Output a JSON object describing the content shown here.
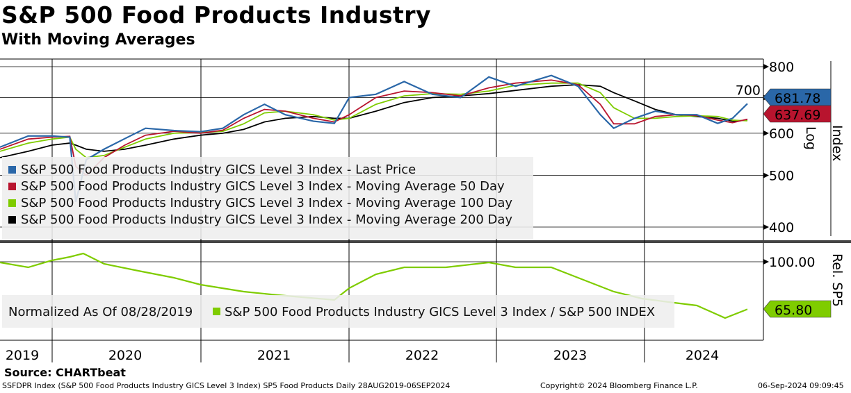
{
  "header": {
    "title": "S&P 500 Food Products Industry",
    "subtitle": "With Moving Averages"
  },
  "footer": {
    "source": "Source: CHARTbeat",
    "description": "SSFDPR Index (S&P 500 Food Products Industry GICS Level 3 Index) SP5 Food Products  Daily 28AUG2019-06SEP2024",
    "copyright": "Copyright© 2024 Bloomberg Finance L.P.",
    "timestamp": "06-Sep-2024 09:09:45"
  },
  "colors": {
    "price": "#2a67a8",
    "ma50": "#b8142e",
    "ma100": "#7fcc00",
    "ma200": "#000000"
  },
  "chart_data": [
    {
      "type": "line",
      "title": "S&P 500 Food Products Industry",
      "scale": "log",
      "ylabel": "Index",
      "scale_label": "Log",
      "ylim": [
        400,
        800
      ],
      "yticks": [
        400,
        500,
        600,
        700,
        800
      ],
      "xlim": [
        2019.65,
        2024.85
      ],
      "xticks": [
        "2019",
        "2020",
        "2021",
        "2022",
        "2023",
        "2024"
      ],
      "xtick_positions": [
        2019.65,
        2020.5,
        2021.5,
        2022.5,
        2023.5,
        2024.4
      ],
      "x": [
        2019.65,
        2019.84,
        2020.0,
        2020.12,
        2020.16,
        2020.23,
        2020.35,
        2020.49,
        2020.63,
        2020.82,
        2021.0,
        2021.15,
        2021.29,
        2021.43,
        2021.57,
        2021.76,
        2021.9,
        2022.0,
        2022.18,
        2022.37,
        2022.56,
        2022.75,
        2022.94,
        2023.12,
        2023.36,
        2023.54,
        2023.69,
        2023.78,
        2023.92,
        2024.06,
        2024.2,
        2024.34,
        2024.48,
        2024.58,
        2024.68
      ],
      "series": [
        {
          "name": "S&P 500 Food Products Industry GICS Level 3 Index - Last Price",
          "key": "price",
          "last_label": "681.78",
          "values": [
            565,
            593,
            593,
            590,
            446,
            535,
            560,
            586,
            613,
            607,
            604,
            613,
            650,
            680,
            650,
            632,
            626,
            700,
            710,
            750,
            710,
            700,
            765,
            735,
            770,
            735,
            650,
            613,
            640,
            660,
            650,
            650,
            626,
            640,
            681.78
          ]
        },
        {
          "name": "S&P 500 Food Products Industry GICS Level 3 Index - Moving Average 50 Day",
          "key": "ma50",
          "last_label": "637.69",
          "values": [
            560,
            585,
            590,
            592,
            520,
            500,
            540,
            570,
            595,
            605,
            600,
            608,
            640,
            665,
            660,
            640,
            630,
            650,
            700,
            720,
            715,
            705,
            730,
            745,
            755,
            740,
            680,
            625,
            625,
            645,
            650,
            648,
            635,
            628,
            637.69
          ]
        },
        {
          "name": "S&P 500 Food Products Industry GICS Level 3 Index - Moving Average 100 Day",
          "key": "ma100",
          "values": [
            555,
            575,
            585,
            590,
            560,
            540,
            545,
            565,
            585,
            600,
            602,
            605,
            625,
            655,
            660,
            650,
            635,
            640,
            680,
            705,
            712,
            710,
            720,
            738,
            745,
            745,
            715,
            670,
            640,
            640,
            645,
            647,
            645,
            635,
            633
          ]
        },
        {
          "name": "S&P 500 Food Products Industry GICS Level 3 Index - Moving Average 200 Day",
          "key": "ma200",
          "values": [
            540,
            555,
            570,
            575,
            570,
            560,
            555,
            560,
            570,
            585,
            595,
            600,
            610,
            630,
            640,
            645,
            640,
            640,
            660,
            685,
            700,
            705,
            712,
            722,
            735,
            740,
            735,
            715,
            690,
            665,
            650,
            645,
            640,
            632,
            635
          ]
        }
      ]
    },
    {
      "type": "line",
      "ylabel": "Rel. SP5",
      "ylim": [
        43.5,
        113.5
      ],
      "yticks": [
        {
          "value": 100,
          "label": "100.00"
        }
      ],
      "annotation": "Normalized As Of 08/28/2019",
      "x": [
        2019.65,
        2019.84,
        2020.0,
        2020.12,
        2020.21,
        2020.35,
        2020.58,
        2020.82,
        2021.0,
        2021.29,
        2021.52,
        2021.9,
        2022.0,
        2022.18,
        2022.37,
        2022.65,
        2022.94,
        2023.12,
        2023.36,
        2023.54,
        2023.78,
        2023.97,
        2024.15,
        2024.34,
        2024.53,
        2024.68
      ],
      "series": [
        {
          "name": "S&P 500 Food Products Industry GICS Level 3 Index / S&P 500 INDEX",
          "key": "ma100",
          "last_label": "65.80",
          "values": [
            99.5,
            96,
            101,
            103.5,
            106,
            98.5,
            93.5,
            88.5,
            83.5,
            78.5,
            76,
            72.5,
            81,
            91,
            96,
            96,
            99.5,
            96,
            96,
            88.5,
            78.5,
            73.5,
            71,
            68.5,
            59.5,
            65.8
          ]
        }
      ]
    }
  ]
}
